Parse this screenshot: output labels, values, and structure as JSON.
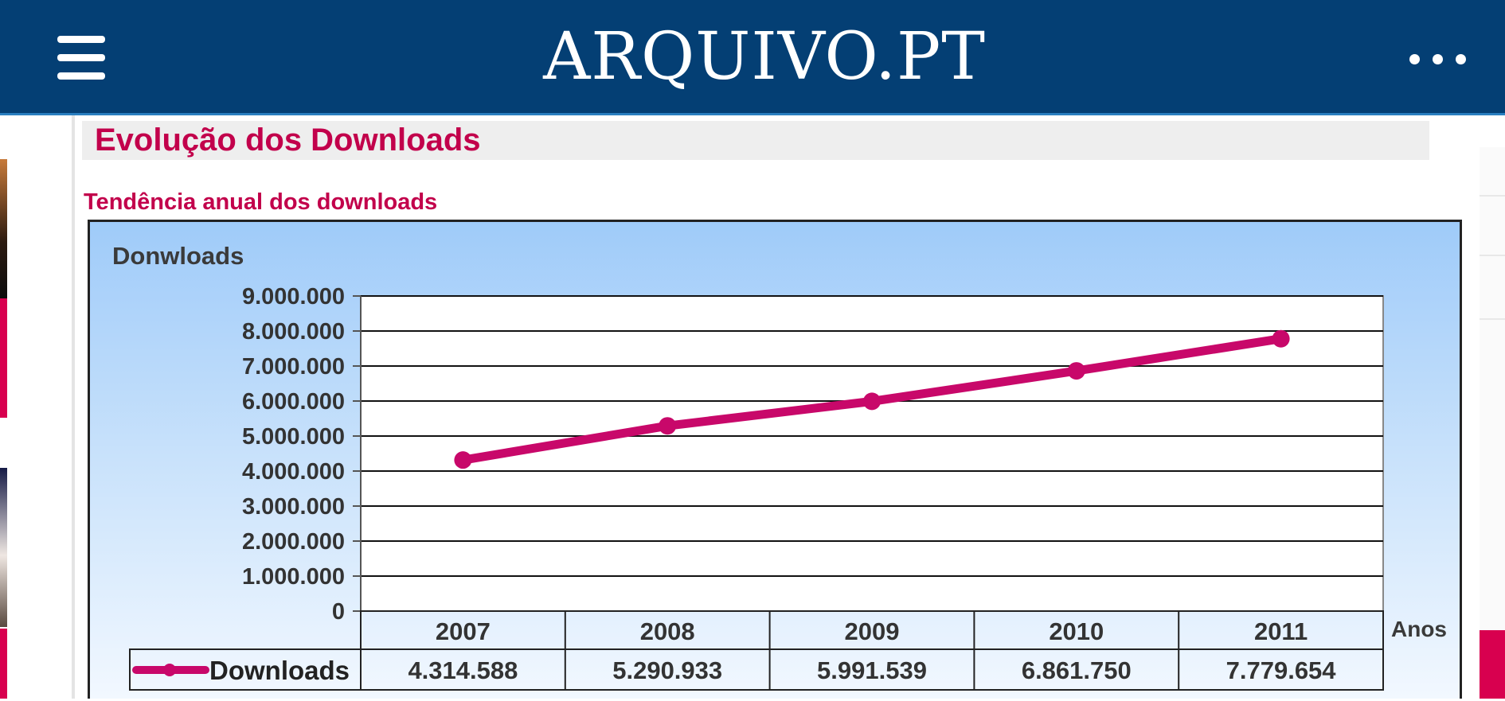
{
  "header": {
    "logo_text": "ARQUIVO.PT",
    "background_color": "#043f74",
    "menu_icon": "hamburger-icon",
    "more_icon": "more-dots-icon"
  },
  "page": {
    "section_title": "Evolução dos Downloads",
    "subtitle": "Tendência anual dos downloads",
    "accent_color": "#c2004b"
  },
  "chart_data": {
    "type": "line",
    "title": "",
    "ylabel": "Donwloads",
    "xlabel": "Anos",
    "categories": [
      "2007",
      "2008",
      "2009",
      "2010",
      "2011"
    ],
    "series": [
      {
        "name": "Downloads",
        "values": [
          4314588,
          5290933,
          5991539,
          6861750,
          7779654
        ],
        "value_labels": [
          "4.314.588",
          "5.290.933",
          "5.991.539",
          "6.861.750",
          "7.779.654"
        ],
        "color": "#c8086a"
      }
    ],
    "y_ticks": [
      0,
      1000000,
      2000000,
      3000000,
      4000000,
      5000000,
      6000000,
      7000000,
      8000000,
      9000000
    ],
    "y_tick_labels": [
      "0",
      "1.000.000",
      "2.000.000",
      "3.000.000",
      "4.000.000",
      "5.000.000",
      "6.000.000",
      "7.000.000",
      "8.000.000",
      "9.000.000"
    ],
    "ylim": [
      0,
      9000000
    ],
    "grid": true,
    "legend": "data-table-bottom"
  }
}
